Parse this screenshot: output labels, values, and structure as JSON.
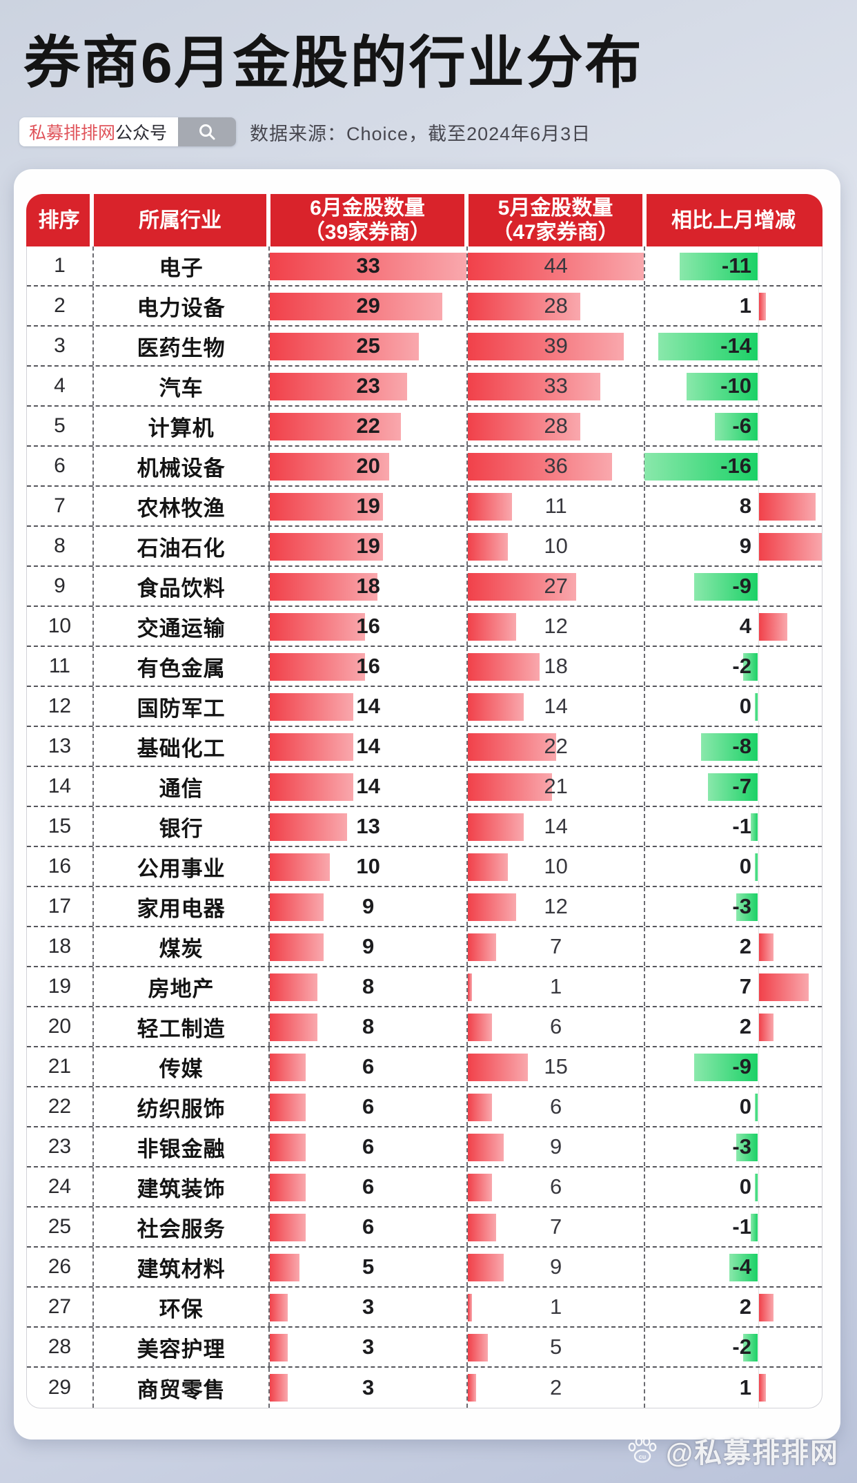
{
  "title": "券商6月金股的行业分布",
  "search_pill": {
    "brand": "私募排排网",
    "suffix": "公众号"
  },
  "source_note": "数据来源：Choice，截至2024年6月3日",
  "corner_watermark": "@私募排排网",
  "diagonal_watermark": "私募排排网",
  "colors": {
    "header_bg": "#d9232b",
    "brand_red": "#e0535a",
    "bar_red_start": "#f1414a",
    "bar_red_end": "#f9a8ad",
    "bar_green_start": "#8ae8ab",
    "bar_green_end": "#1bd166"
  },
  "table": {
    "headers": {
      "rank": "排序",
      "industry": "所属行业",
      "june_line1": "6月金股数量",
      "june_line2": "（39家券商）",
      "may_line1": "5月金股数量",
      "may_line2": "（47家券商）",
      "change": "相比上月增减"
    },
    "rows": [
      {
        "rank": 1,
        "industry": "电子",
        "june": 33,
        "may": 44,
        "change": -11
      },
      {
        "rank": 2,
        "industry": "电力设备",
        "june": 29,
        "may": 28,
        "change": 1
      },
      {
        "rank": 3,
        "industry": "医药生物",
        "june": 25,
        "may": 39,
        "change": -14
      },
      {
        "rank": 4,
        "industry": "汽车",
        "june": 23,
        "may": 33,
        "change": -10
      },
      {
        "rank": 5,
        "industry": "计算机",
        "june": 22,
        "may": 28,
        "change": -6
      },
      {
        "rank": 6,
        "industry": "机械设备",
        "june": 20,
        "may": 36,
        "change": -16
      },
      {
        "rank": 7,
        "industry": "农林牧渔",
        "june": 19,
        "may": 11,
        "change": 8
      },
      {
        "rank": 8,
        "industry": "石油石化",
        "june": 19,
        "may": 10,
        "change": 9
      },
      {
        "rank": 9,
        "industry": "食品饮料",
        "june": 18,
        "may": 27,
        "change": -9
      },
      {
        "rank": 10,
        "industry": "交通运输",
        "june": 16,
        "may": 12,
        "change": 4
      },
      {
        "rank": 11,
        "industry": "有色金属",
        "june": 16,
        "may": 18,
        "change": -2
      },
      {
        "rank": 12,
        "industry": "国防军工",
        "june": 14,
        "may": 14,
        "change": 0
      },
      {
        "rank": 13,
        "industry": "基础化工",
        "june": 14,
        "may": 22,
        "change": -8
      },
      {
        "rank": 14,
        "industry": "通信",
        "june": 14,
        "may": 21,
        "change": -7
      },
      {
        "rank": 15,
        "industry": "银行",
        "june": 13,
        "may": 14,
        "change": -1
      },
      {
        "rank": 16,
        "industry": "公用事业",
        "june": 10,
        "may": 10,
        "change": 0
      },
      {
        "rank": 17,
        "industry": "家用电器",
        "june": 9,
        "may": 12,
        "change": -3
      },
      {
        "rank": 18,
        "industry": "煤炭",
        "june": 9,
        "may": 7,
        "change": 2
      },
      {
        "rank": 19,
        "industry": "房地产",
        "june": 8,
        "may": 1,
        "change": 7
      },
      {
        "rank": 20,
        "industry": "轻工制造",
        "june": 8,
        "may": 6,
        "change": 2
      },
      {
        "rank": 21,
        "industry": "传媒",
        "june": 6,
        "may": 15,
        "change": -9
      },
      {
        "rank": 22,
        "industry": "纺织服饰",
        "june": 6,
        "may": 6,
        "change": 0
      },
      {
        "rank": 23,
        "industry": "非银金融",
        "june": 6,
        "may": 9,
        "change": -3
      },
      {
        "rank": 24,
        "industry": "建筑装饰",
        "june": 6,
        "may": 6,
        "change": 0
      },
      {
        "rank": 25,
        "industry": "社会服务",
        "june": 6,
        "may": 7,
        "change": -1
      },
      {
        "rank": 26,
        "industry": "建筑材料",
        "june": 5,
        "may": 9,
        "change": -4
      },
      {
        "rank": 27,
        "industry": "环保",
        "june": 3,
        "may": 1,
        "change": 2
      },
      {
        "rank": 28,
        "industry": "美容护理",
        "june": 3,
        "may": 5,
        "change": -2
      },
      {
        "rank": 29,
        "industry": "商贸零售",
        "june": 3,
        "may": 2,
        "change": 1
      }
    ]
  },
  "chart_data": {
    "type": "table",
    "title": "券商6月金股的行业分布",
    "source": "数据来源：Choice，截至2024年6月3日",
    "columns": [
      "排序",
      "所属行业",
      "6月金股数量（39家券商）",
      "5月金股数量（47家券商）",
      "相比上月增减"
    ],
    "categories": [
      "电子",
      "电力设备",
      "医药生物",
      "汽车",
      "计算机",
      "机械设备",
      "农林牧渔",
      "石油石化",
      "食品饮料",
      "交通运输",
      "有色金属",
      "国防军工",
      "基础化工",
      "通信",
      "银行",
      "公用事业",
      "家用电器",
      "煤炭",
      "房地产",
      "轻工制造",
      "传媒",
      "纺织服饰",
      "非银金融",
      "建筑装饰",
      "社会服务",
      "建筑材料",
      "环保",
      "美容护理",
      "商贸零售"
    ],
    "series": [
      {
        "name": "6月金股数量（39家券商）",
        "values": [
          33,
          29,
          25,
          23,
          22,
          20,
          19,
          19,
          18,
          16,
          16,
          14,
          14,
          14,
          13,
          10,
          9,
          9,
          8,
          8,
          6,
          6,
          6,
          6,
          6,
          5,
          3,
          3,
          3
        ]
      },
      {
        "name": "5月金股数量（47家券商）",
        "values": [
          44,
          28,
          39,
          33,
          28,
          36,
          11,
          10,
          27,
          12,
          18,
          14,
          22,
          21,
          14,
          10,
          12,
          7,
          1,
          6,
          15,
          6,
          9,
          6,
          7,
          9,
          1,
          5,
          2
        ]
      },
      {
        "name": "相比上月增减",
        "values": [
          -11,
          1,
          -14,
          -10,
          -6,
          -16,
          8,
          9,
          -9,
          4,
          -2,
          0,
          -8,
          -7,
          -1,
          0,
          -3,
          2,
          7,
          2,
          -9,
          0,
          -3,
          0,
          -1,
          -4,
          2,
          -2,
          1
        ]
      }
    ],
    "layout": {
      "bar_color": "red-gradient",
      "negative_change_color": "green-gradient",
      "positive_change_color": "red-gradient"
    }
  }
}
